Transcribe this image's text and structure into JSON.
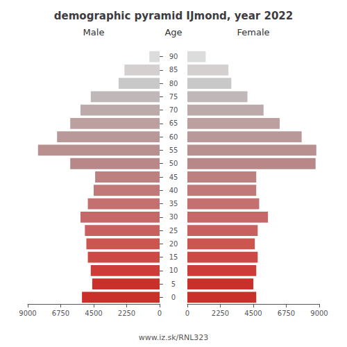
{
  "chart_data": {
    "type": "bar",
    "orientation": "horizontal",
    "title": "demographic pyramid IJmond, year 2022",
    "ylabel": "Age",
    "annotations": [
      "www.iz.sk/RNL323"
    ],
    "categories": [
      "0",
      "5",
      "10",
      "15",
      "20",
      "25",
      "30",
      "35",
      "40",
      "45",
      "50",
      "55",
      "60",
      "65",
      "70",
      "75",
      "80",
      "85",
      "90"
    ],
    "series": [
      {
        "name": "Male",
        "values": [
          5300,
          4600,
          4700,
          4900,
          5000,
          5100,
          5400,
          4900,
          4500,
          4400,
          6100,
          8300,
          7000,
          6100,
          5400,
          4700,
          2800,
          2400,
          700
        ],
        "colors": [
          "#c9302a",
          "#c9302a",
          "#cd3d38",
          "#cc4a45",
          "#cc5550",
          "#c96060",
          "#c46868",
          "#c47070",
          "#c07878",
          "#bc8080",
          "#b88888",
          "#b89090",
          "#b89898",
          "#bca0a0",
          "#bcaaaa",
          "#c0b8b8",
          "#c8c8c8",
          "#d4d0d0",
          "#dcdcdc"
        ]
      },
      {
        "name": "Female",
        "values": [
          4700,
          4500,
          4700,
          4800,
          4600,
          4800,
          5500,
          4900,
          4700,
          4700,
          8750,
          8800,
          7800,
          6300,
          5200,
          4100,
          3000,
          2800,
          1250
        ],
        "colors": [
          "#c9302a",
          "#c9302a",
          "#cd3d38",
          "#cc4a45",
          "#cc5550",
          "#c96060",
          "#c46868",
          "#c47070",
          "#c07878",
          "#bc8080",
          "#b88888",
          "#b89090",
          "#b89898",
          "#bca0a0",
          "#bcaaaa",
          "#c0b8b8",
          "#c8c8c8",
          "#d4d0d0",
          "#dcdcdc"
        ]
      }
    ],
    "xlim": [
      0,
      9000
    ],
    "xticks": [
      0,
      2250,
      4500,
      6750,
      9000
    ],
    "grid": false
  }
}
